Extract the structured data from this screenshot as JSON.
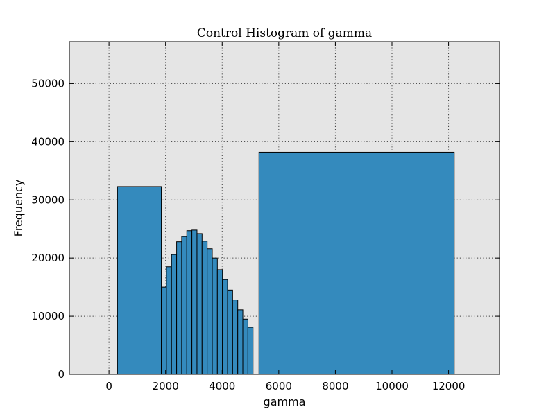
{
  "chart_data": {
    "type": "bar",
    "title": "Control Histogram of gamma",
    "xlabel": "gamma",
    "ylabel": "Frequency",
    "xlim": [
      -1400,
      13800
    ],
    "ylim": [
      0,
      57200
    ],
    "xticks": [
      0,
      2000,
      4000,
      6000,
      8000,
      10000,
      12000
    ],
    "yticks": [
      0,
      10000,
      20000,
      30000,
      40000,
      50000
    ],
    "grid": true,
    "colors": {
      "bar": "#348abd",
      "background": "#e5e5e5"
    },
    "bins": [
      {
        "x0": 300,
        "x1": 1850,
        "count": 32300
      },
      {
        "x0": 1850,
        "x1": 2030,
        "count": 15000
      },
      {
        "x0": 2030,
        "x1": 2210,
        "count": 18500
      },
      {
        "x0": 2210,
        "x1": 2390,
        "count": 20600
      },
      {
        "x0": 2390,
        "x1": 2570,
        "count": 22800
      },
      {
        "x0": 2570,
        "x1": 2750,
        "count": 23700
      },
      {
        "x0": 2750,
        "x1": 2930,
        "count": 24700
      },
      {
        "x0": 2930,
        "x1": 3110,
        "count": 24800
      },
      {
        "x0": 3110,
        "x1": 3290,
        "count": 24200
      },
      {
        "x0": 3290,
        "x1": 3470,
        "count": 22900
      },
      {
        "x0": 3470,
        "x1": 3650,
        "count": 21600
      },
      {
        "x0": 3650,
        "x1": 3830,
        "count": 20000
      },
      {
        "x0": 3830,
        "x1": 4010,
        "count": 18000
      },
      {
        "x0": 4010,
        "x1": 4190,
        "count": 16300
      },
      {
        "x0": 4190,
        "x1": 4370,
        "count": 14500
      },
      {
        "x0": 4370,
        "x1": 4550,
        "count": 12800
      },
      {
        "x0": 4550,
        "x1": 4730,
        "count": 11100
      },
      {
        "x0": 4730,
        "x1": 4910,
        "count": 9500
      },
      {
        "x0": 4910,
        "x1": 5090,
        "count": 8100
      },
      {
        "x0": 5300,
        "x1": 12200,
        "count": 38200
      }
    ]
  }
}
